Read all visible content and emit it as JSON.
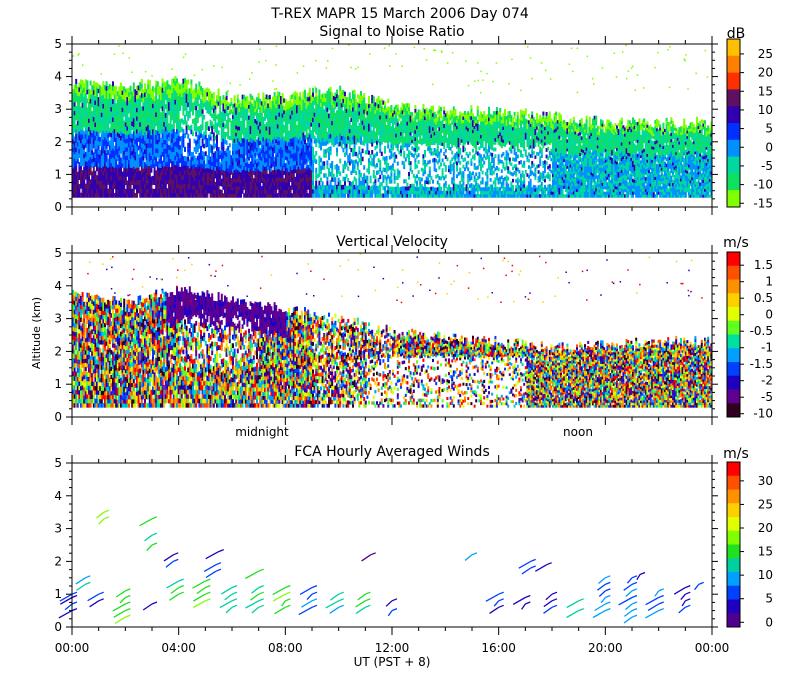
{
  "header": {
    "title": "T-REX   MAPR 15 March 2006 Day 074"
  },
  "x_axis": {
    "tick_labels": [
      "00:00",
      "04:00",
      "08:00",
      "12:00",
      "16:00",
      "20:00",
      "00:00"
    ],
    "tick_hours": [
      0,
      4,
      8,
      12,
      16,
      20,
      24
    ],
    "label": "UT  (PST + 8)",
    "midnight_label": "midnight",
    "noon_label": "noon",
    "midnight_hour": 6.4,
    "noon_hour": 19.4
  },
  "y_axis": {
    "label": "Altitude (km)",
    "tick_labels": [
      "0",
      "1",
      "2",
      "3",
      "4",
      "5"
    ]
  },
  "panels": {
    "snr": {
      "title": "Signal to Noise Ratio",
      "units": "dB",
      "colorbar_labels": [
        "25",
        "20",
        "15",
        "10",
        "5",
        "0",
        "-5",
        "-10",
        "-15"
      ],
      "colorbar_colors": [
        "#ffc000",
        "#ff8000",
        "#ff3000",
        "#601060",
        "#3000b0",
        "#0030ff",
        "#0090ff",
        "#00d8a0",
        "#10e060",
        "#80ff00"
      ]
    },
    "velocity": {
      "title": "Vertical Velocity",
      "units": "m/s",
      "colorbar_labels": [
        "1.5",
        "1",
        "0.5",
        "0",
        "-0.5",
        "-1",
        "-1.5",
        "-2",
        "-5",
        "-10"
      ],
      "colorbar_colors": [
        "#ff0000",
        "#ff5000",
        "#ff9000",
        "#ffd000",
        "#e0ff00",
        "#60ff20",
        "#00e0a0",
        "#00a0ff",
        "#0040ff",
        "#2000c0",
        "#600090",
        "#300020"
      ]
    },
    "winds": {
      "title": "FCA Hourly Averaged Winds",
      "units": "m/s",
      "colorbar_labels": [
        "30",
        "25",
        "20",
        "15",
        "10",
        "5",
        "0"
      ],
      "colorbar_colors": [
        "#ff0000",
        "#ff5000",
        "#ff9000",
        "#ffd000",
        "#e0ff00",
        "#80ff00",
        "#20e020",
        "#00d0a0",
        "#00a0ff",
        "#0040ff",
        "#2000c0",
        "#500090"
      ]
    }
  },
  "chart_data": [
    {
      "type": "heatmap",
      "title": "Signal to Noise Ratio",
      "xlabel": "UT (PST + 8)",
      "ylabel": "Altitude (km)",
      "xlim": [
        0,
        24
      ],
      "ylim": [
        0,
        5
      ],
      "colorbar_unit": "dB",
      "colorbar_range": [
        -15,
        28
      ],
      "echo_top_km": {
        "hours": [
          0,
          2,
          4,
          6,
          8,
          10,
          12,
          14,
          16,
          18,
          20,
          22,
          24
        ],
        "values": [
          3.8,
          3.7,
          3.9,
          3.3,
          3.4,
          3.6,
          3.1,
          3.0,
          2.9,
          2.8,
          2.6,
          2.6,
          2.6
        ]
      }
    },
    {
      "type": "heatmap",
      "title": "Vertical Velocity",
      "xlabel": "UT (PST + 8)",
      "ylabel": "Altitude (km)",
      "xlim": [
        0,
        24
      ],
      "ylim": [
        0,
        5
      ],
      "colorbar_unit": "m/s",
      "colorbar_range": [
        -10,
        1.8
      ],
      "echo_top_km": {
        "hours": [
          0,
          2,
          4,
          6,
          8,
          10,
          12,
          14,
          16,
          18,
          20,
          22,
          24
        ],
        "values": [
          3.7,
          3.5,
          3.9,
          3.6,
          3.3,
          3.0,
          2.6,
          2.4,
          2.3,
          2.1,
          2.2,
          2.3,
          2.3
        ]
      }
    },
    {
      "type": "scatter",
      "title": "FCA Hourly Averaged Winds",
      "xlabel": "UT (PST + 8)",
      "ylabel": "Altitude (km)",
      "xlim": [
        0,
        24
      ],
      "ylim": [
        0,
        5
      ],
      "colorbar_unit": "m/s",
      "colorbar_range": [
        0,
        32
      ],
      "barb_columns": [
        {
          "hour": 0.0,
          "altitudes": [
            0.5,
            0.7,
            0.9,
            1.0
          ],
          "speed": 4
        },
        {
          "hour": 0.5,
          "altitudes": [
            1.3,
            1.5
          ],
          "speed": 10
        },
        {
          "hour": 1.0,
          "altitudes": [
            0.8,
            1.0
          ],
          "speed": 4
        },
        {
          "hour": 1.2,
          "altitudes": [
            3.3,
            3.5
          ],
          "speed": 17
        },
        {
          "hour": 2.0,
          "altitudes": [
            0.3,
            0.5,
            0.7,
            0.9,
            1.1
          ],
          "speed": 15
        },
        {
          "hour": 3.0,
          "altitudes": [
            2.5,
            2.8,
            3.3
          ],
          "speed": 14
        },
        {
          "hour": 3.0,
          "altitudes": [
            0.7
          ],
          "speed": 2
        },
        {
          "hour": 3.8,
          "altitudes": [
            2.0,
            2.2
          ],
          "speed": 4
        },
        {
          "hour": 4.0,
          "altitudes": [
            1.0,
            1.2,
            1.4
          ],
          "speed": 13
        },
        {
          "hour": 5.0,
          "altitudes": [
            0.8,
            1.0,
            1.2,
            1.4
          ],
          "speed": 15
        },
        {
          "hour": 5.4,
          "altitudes": [
            1.7,
            1.9
          ],
          "speed": 4
        },
        {
          "hour": 5.5,
          "altitudes": [
            2.3
          ],
          "speed": 2
        },
        {
          "hour": 6.0,
          "altitudes": [
            0.6,
            0.8,
            1.0,
            1.2
          ],
          "speed": 12
        },
        {
          "hour": 7.0,
          "altitudes": [
            0.6,
            0.8,
            1.0,
            1.2,
            1.7
          ],
          "speed": 14
        },
        {
          "hour": 8.0,
          "altitudes": [
            0.6,
            0.8,
            1.0,
            1.2
          ],
          "speed": 15
        },
        {
          "hour": 9.0,
          "altitudes": [
            0.6,
            0.8,
            1.0,
            1.2
          ],
          "speed": 6
        },
        {
          "hour": 10.0,
          "altitudes": [
            0.6,
            0.8,
            1.0
          ],
          "speed": 11
        },
        {
          "hour": 11.0,
          "altitudes": [
            0.6,
            0.8,
            1.0
          ],
          "speed": 14
        },
        {
          "hour": 11.2,
          "altitudes": [
            2.2
          ],
          "speed": 2
        },
        {
          "hour": 12.0,
          "altitudes": [
            0.5,
            0.8
          ],
          "speed": 3
        },
        {
          "hour": 15.0,
          "altitudes": [
            2.2
          ],
          "speed": 8
        },
        {
          "hour": 16.0,
          "altitudes": [
            0.6,
            0.8,
            1.0
          ],
          "speed": 4
        },
        {
          "hour": 17.0,
          "altitudes": [
            0.7,
            0.9
          ],
          "speed": 3
        },
        {
          "hour": 17.2,
          "altitudes": [
            1.8,
            2.0
          ],
          "speed": 5
        },
        {
          "hour": 17.8,
          "altitudes": [
            1.9
          ],
          "speed": 4
        },
        {
          "hour": 18.0,
          "altitudes": [
            0.6,
            0.8,
            1.0
          ],
          "speed": 3
        },
        {
          "hour": 19.0,
          "altitudes": [
            0.5,
            0.8
          ],
          "speed": 12
        },
        {
          "hour": 20.0,
          "altitudes": [
            0.5,
            0.7,
            0.9,
            1.1,
            1.3,
            1.5
          ],
          "speed": 8
        },
        {
          "hour": 21.0,
          "altitudes": [
            0.3,
            0.5,
            0.7,
            0.9,
            1.1,
            1.3,
            1.5
          ],
          "speed": 7
        },
        {
          "hour": 21.3,
          "altitudes": [
            1.6
          ],
          "speed": 3
        },
        {
          "hour": 22.0,
          "altitudes": [
            0.5,
            0.7,
            0.9,
            1.1
          ],
          "speed": 6
        },
        {
          "hour": 23.0,
          "altitudes": [
            0.6,
            0.8,
            1.0,
            1.2
          ],
          "speed": 4
        },
        {
          "hour": 23.5,
          "altitudes": [
            1.3
          ],
          "speed": 5
        }
      ]
    }
  ]
}
